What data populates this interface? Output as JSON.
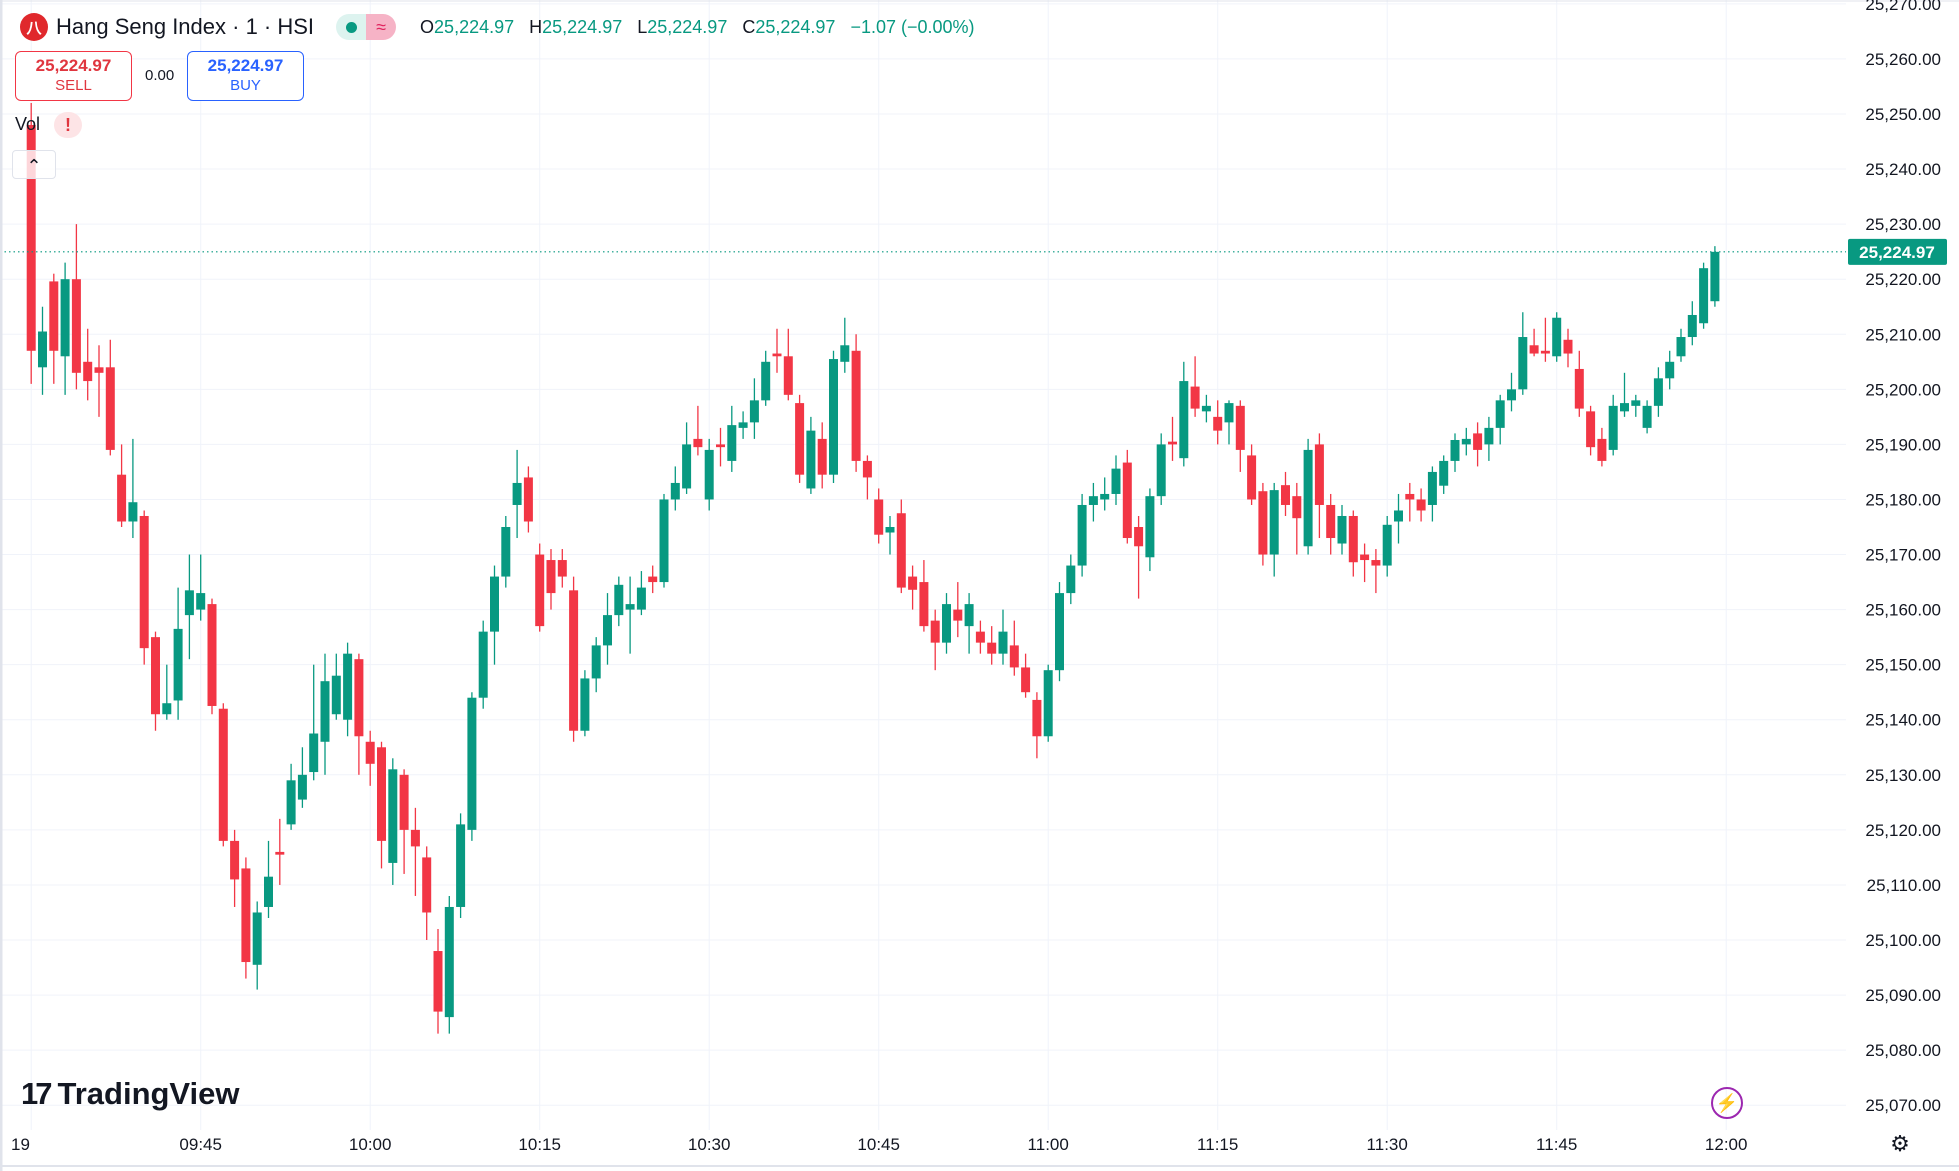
{
  "header": {
    "symbol_icon": "hang-seng-logo",
    "title": "Hang Seng Index · 1 · HSI",
    "market_status_icon": "market-open-dot",
    "data_status_icon": "delayed-data-wave",
    "ohlc": {
      "o_label": "O",
      "o": "25,224.97",
      "h_label": "H",
      "h": "25,224.97",
      "l_label": "L",
      "l": "25,224.97",
      "c_label": "C",
      "c": "25,224.97",
      "change": "−1.07 (−0.00%)"
    }
  },
  "trade": {
    "sell_price": "25,224.97",
    "sell_label": "SELL",
    "spread": "0.00",
    "buy_price": "25,224.97",
    "buy_label": "BUY"
  },
  "indicator": {
    "label": "Vol",
    "warning": "!",
    "collapse_icon": "chevron-up"
  },
  "branding": {
    "logo_text": "TradingView"
  },
  "icons": {
    "lightning": "⚡",
    "settings": "⚙"
  },
  "colors": {
    "up": "#089981",
    "down": "#F23645",
    "grid": "#f0f3fa",
    "last_price": "#089981"
  },
  "chart_data": {
    "type": "candlestick",
    "title": "Hang Seng Index · 1 · HSI",
    "interval_minutes": 1,
    "start_time": "09:30",
    "last_price": 25224.97,
    "last_price_label": "25,224.97",
    "ylim": [
      25065.5,
      25270.7
    ],
    "grid": true,
    "y_ticks": [
      {
        "value": 25270,
        "label": "25,270.00"
      },
      {
        "value": 25260,
        "label": "25,260.00"
      },
      {
        "value": 25250,
        "label": "25,250.00"
      },
      {
        "value": 25240,
        "label": "25,240.00"
      },
      {
        "value": 25230,
        "label": "25,230.00"
      },
      {
        "value": 25220,
        "label": "25,220.00"
      },
      {
        "value": 25210,
        "label": "25,210.00"
      },
      {
        "value": 25200,
        "label": "25,200.00"
      },
      {
        "value": 25190,
        "label": "25,190.00"
      },
      {
        "value": 25180,
        "label": "25,180.00"
      },
      {
        "value": 25170,
        "label": "25,170.00"
      },
      {
        "value": 25160,
        "label": "25,160.00"
      },
      {
        "value": 25150,
        "label": "25,150.00"
      },
      {
        "value": 25140,
        "label": "25,140.00"
      },
      {
        "value": 25130,
        "label": "25,130.00"
      },
      {
        "value": 25120,
        "label": "25,120.00"
      },
      {
        "value": 25110,
        "label": "25,110.00"
      },
      {
        "value": 25100,
        "label": "25,100.00"
      },
      {
        "value": 25090,
        "label": "25,090.00"
      },
      {
        "value": 25080,
        "label": "25,080.00"
      },
      {
        "value": 25070,
        "label": "25,070.00"
      }
    ],
    "x_ticks": [
      {
        "time": "09:30",
        "label": "19"
      },
      {
        "time": "09:45",
        "label": "09:45"
      },
      {
        "time": "10:00",
        "label": "10:00"
      },
      {
        "time": "10:15",
        "label": "10:15"
      },
      {
        "time": "10:30",
        "label": "10:30"
      },
      {
        "time": "10:45",
        "label": "10:45"
      },
      {
        "time": "11:00",
        "label": "11:00"
      },
      {
        "time": "11:15",
        "label": "11:15"
      },
      {
        "time": "11:30",
        "label": "11:30"
      },
      {
        "time": "11:45",
        "label": "11:45"
      },
      {
        "time": "12:00",
        "label": "12:00"
      }
    ],
    "ohlc_fields": [
      "open",
      "high",
      "low",
      "close"
    ],
    "candles": [
      [
        25248,
        25252,
        25201,
        25207
      ],
      [
        25204,
        25215,
        25199,
        25210.5
      ],
      [
        25219.6,
        25221,
        25201,
        25207
      ],
      [
        25206,
        25223,
        25199,
        25220
      ],
      [
        25220,
        25230,
        25200,
        25203
      ],
      [
        25205,
        25211,
        25198,
        25201.5
      ],
      [
        25204,
        25208,
        25195,
        25203
      ],
      [
        25204,
        25209,
        25188,
        25189
      ],
      [
        25184.5,
        25190,
        25175,
        25176
      ],
      [
        25176,
        25191,
        25173,
        25179.5
      ],
      [
        25177,
        25178,
        25150,
        25153
      ],
      [
        25155,
        25156,
        25138,
        25141
      ],
      [
        25141,
        25150,
        25140,
        25143
      ],
      [
        25143.5,
        25164,
        25140,
        25156.5
      ],
      [
        25159,
        25170,
        25151,
        25163.5
      ],
      [
        25160,
        25170,
        25158,
        25163
      ],
      [
        25161,
        25162,
        25141,
        25142.5
      ],
      [
        25142,
        25143,
        25117,
        25118
      ],
      [
        25118,
        25120,
        25106,
        25111
      ],
      [
        25113,
        25115,
        25093,
        25096
      ],
      [
        25095.5,
        25107,
        25091,
        25105
      ],
      [
        25106,
        25118,
        25104,
        25111.5
      ],
      [
        25116,
        25122,
        25110,
        25115.5
      ],
      [
        25121,
        25132,
        25120,
        25129
      ],
      [
        25125.5,
        25135,
        25124,
        25130
      ],
      [
        25130.5,
        25150,
        25129,
        25137.5
      ],
      [
        25136,
        25152,
        25130,
        25147
      ],
      [
        25141,
        25152,
        25140,
        25148
      ],
      [
        25140,
        25154,
        25137,
        25152
      ],
      [
        25151,
        25152,
        25130,
        25137
      ],
      [
        25136,
        25138,
        25128,
        25132
      ],
      [
        25135,
        25136,
        25113,
        25118
      ],
      [
        25114,
        25133,
        25110,
        25131
      ],
      [
        25130,
        25131,
        25112,
        25120
      ],
      [
        25120,
        25124,
        25108,
        25117
      ],
      [
        25115,
        25117,
        25100,
        25105
      ],
      [
        25098,
        25102,
        25083,
        25087
      ],
      [
        25086,
        25108,
        25083,
        25106
      ],
      [
        25106,
        25123,
        25104,
        25121
      ],
      [
        25120,
        25145,
        25118,
        25144
      ],
      [
        25144,
        25158,
        25142,
        25156
      ],
      [
        25156,
        25168,
        25150,
        25166
      ],
      [
        25166,
        25177,
        25164,
        25175
      ],
      [
        25179,
        25189,
        25173,
        25183
      ],
      [
        25184,
        25186,
        25174,
        25176
      ],
      [
        25170,
        25172,
        25156,
        25157
      ],
      [
        25169,
        25171,
        25160,
        25163
      ],
      [
        25169,
        25171,
        25164,
        25166
      ],
      [
        25163.5,
        25166,
        25136,
        25138
      ],
      [
        25138,
        25149,
        25137,
        25147.5
      ],
      [
        25147.5,
        25155,
        25145,
        25153.5
      ],
      [
        25153.5,
        25163,
        25150,
        25159
      ],
      [
        25159,
        25166,
        25157,
        25164.5
      ],
      [
        25160,
        25166,
        25152,
        25161
      ],
      [
        25160,
        25167,
        25159,
        25164
      ],
      [
        25166,
        25168,
        25163,
        25165
      ],
      [
        25165,
        25181,
        25164,
        25180
      ],
      [
        25180,
        25186,
        25178,
        25183
      ],
      [
        25182,
        25194,
        25181,
        25190
      ],
      [
        25191,
        25197,
        25188,
        25189.5
      ],
      [
        25180,
        25191,
        25178,
        25189
      ],
      [
        25190,
        25193,
        25186,
        25189.5
      ],
      [
        25187,
        25197,
        25185,
        25193.5
      ],
      [
        25193,
        25196,
        25191,
        25194
      ],
      [
        25194,
        25202,
        25191,
        25198
      ],
      [
        25198,
        25207,
        25197,
        25205
      ],
      [
        25206.5,
        25211,
        25203,
        25206
      ],
      [
        25206,
        25211,
        25198,
        25199
      ],
      [
        25197.5,
        25199,
        25183,
        25184.5
      ],
      [
        25182,
        25195,
        25181,
        25192.5
      ],
      [
        25191,
        25194,
        25182,
        25184.5
      ],
      [
        25184.5,
        25207,
        25183,
        25205.5
      ],
      [
        25205,
        25213,
        25203,
        25208
      ],
      [
        25207,
        25210,
        25185,
        25187
      ],
      [
        25187,
        25188,
        25180,
        25184
      ],
      [
        25180,
        25182,
        25172,
        25173.6
      ],
      [
        25174,
        25177,
        25170,
        25175
      ],
      [
        25177.5,
        25180,
        25163,
        25164
      ],
      [
        25166,
        25168,
        25160,
        25163.6
      ],
      [
        25165,
        25169,
        25156,
        25157
      ],
      [
        25158,
        25160,
        25149,
        25154
      ],
      [
        25154,
        25163,
        25152,
        25161
      ],
      [
        25160,
        25165,
        25155,
        25158
      ],
      [
        25157,
        25163,
        25152,
        25161
      ],
      [
        25156,
        25158,
        25152,
        25154
      ],
      [
        25154,
        25157,
        25150,
        25152
      ],
      [
        25152,
        25160,
        25150,
        25156
      ],
      [
        25153.5,
        25158,
        25148,
        25149.5
      ],
      [
        25149.5,
        25152,
        25144,
        25145
      ],
      [
        25143.6,
        25145,
        25133,
        25137
      ],
      [
        25137,
        25150,
        25136,
        25149
      ],
      [
        25149,
        25165,
        25147,
        25163
      ],
      [
        25163,
        25170,
        25161,
        25168
      ],
      [
        25168,
        25181,
        25166,
        25179
      ],
      [
        25179,
        25183,
        25176,
        25180.6
      ],
      [
        25180,
        25184,
        25178,
        25181
      ],
      [
        25181,
        25188,
        25179,
        25185.6
      ],
      [
        25186.7,
        25189,
        25172,
        25173
      ],
      [
        25175,
        25177,
        25162,
        25171.5
      ],
      [
        25169.5,
        25182,
        25167,
        25180.6
      ],
      [
        25180.6,
        25192,
        25179,
        25190
      ],
      [
        25190.5,
        25195,
        25187,
        25190
      ],
      [
        25187.5,
        25205,
        25186,
        25201.5
      ],
      [
        25200.5,
        25206,
        25195,
        25196.5
      ],
      [
        25196,
        25199,
        25194,
        25197
      ],
      [
        25195,
        25198,
        25190,
        25192.5
      ],
      [
        25194,
        25198,
        25190,
        25197.5
      ],
      [
        25197,
        25198,
        25185,
        25189
      ],
      [
        25188,
        25190,
        25179,
        25180
      ],
      [
        25181.5,
        25183,
        25168,
        25170
      ],
      [
        25170,
        25183,
        25166,
        25181.7
      ],
      [
        25182.6,
        25185,
        25177,
        25179
      ],
      [
        25180.6,
        25183,
        25170,
        25176.6
      ],
      [
        25171.5,
        25191,
        25170,
        25189
      ],
      [
        25190,
        25192,
        25173,
        25179
      ],
      [
        25179,
        25181,
        25170,
        25173
      ],
      [
        25172,
        25179,
        25170,
        25177
      ],
      [
        25177,
        25178,
        25166,
        25168.6
      ],
      [
        25170,
        25172,
        25165,
        25169
      ],
      [
        25169,
        25171,
        25163,
        25168
      ],
      [
        25168,
        25177,
        25166,
        25175.4
      ],
      [
        25176,
        25181,
        25172,
        25178
      ],
      [
        25181,
        25183,
        25176,
        25180
      ],
      [
        25180,
        25182,
        25176,
        25178
      ],
      [
        25179,
        25186,
        25176,
        25185
      ],
      [
        25182.5,
        25188,
        25181,
        25187
      ],
      [
        25187,
        25192,
        25185,
        25190.8
      ],
      [
        25190,
        25193,
        25188,
        25191
      ],
      [
        25192,
        25194,
        25186,
        25189
      ],
      [
        25190,
        25195,
        25187,
        25193
      ],
      [
        25193,
        25199,
        25190,
        25198
      ],
      [
        25198,
        25203,
        25196,
        25200
      ],
      [
        25200,
        25214,
        25199,
        25209.5
      ],
      [
        25208,
        25211,
        25206,
        25206.5
      ],
      [
        25207,
        25213,
        25205,
        25206.5
      ],
      [
        25206,
        25214,
        25205,
        25213
      ],
      [
        25209,
        25211,
        25204,
        25206.5
      ],
      [
        25203.7,
        25207,
        25195,
        25196.5
      ],
      [
        25196,
        25197,
        25188,
        25189.5
      ],
      [
        25191,
        25193,
        25186,
        25187
      ],
      [
        25189,
        25199,
        25188,
        25197
      ],
      [
        25196,
        25203,
        25195,
        25197.5
      ],
      [
        25197,
        25199,
        25195,
        25198
      ],
      [
        25193,
        25198,
        25192,
        25197
      ],
      [
        25197,
        25204,
        25195,
        25202
      ],
      [
        25202,
        25207,
        25200,
        25205
      ],
      [
        25206,
        25211,
        25205,
        25209.5
      ],
      [
        25209.5,
        25216,
        25208,
        25213.5
      ],
      [
        25212,
        25223,
        25211,
        25222
      ],
      [
        25216,
        25226,
        25215,
        25224.97
      ]
    ]
  }
}
